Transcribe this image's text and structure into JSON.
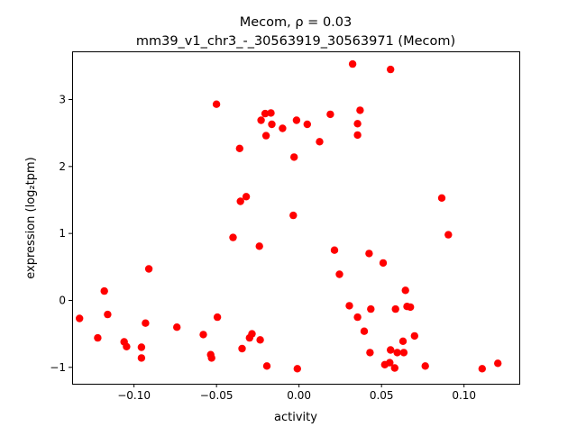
{
  "chart_data": {
    "type": "scatter",
    "title_line1": "Mecom, ρ = 0.03",
    "title_line2": "mm39_v1_chr3_-_30563919_30563971 (Mecom)",
    "xlabel": "activity",
    "ylabel": "expression (log₂tpm)",
    "xlim": [
      -0.1375,
      0.1335
    ],
    "ylim": [
      -1.245,
      3.72
    ],
    "xticks": [
      {
        "value": -0.1,
        "label": "−0.10"
      },
      {
        "value": -0.05,
        "label": "−0.05"
      },
      {
        "value": 0.0,
        "label": "0.00"
      },
      {
        "value": 0.05,
        "label": "0.05"
      },
      {
        "value": 0.1,
        "label": "0.10"
      }
    ],
    "yticks": [
      {
        "value": -1,
        "label": "−1"
      },
      {
        "value": 0,
        "label": "0"
      },
      {
        "value": 1,
        "label": "1"
      },
      {
        "value": 2,
        "label": "2"
      },
      {
        "value": 3,
        "label": "3"
      }
    ],
    "grid": false,
    "point_color": "#ff0000",
    "points": [
      [
        -0.133,
        -0.27
      ],
      [
        -0.122,
        -0.56
      ],
      [
        -0.118,
        0.14
      ],
      [
        -0.116,
        -0.21
      ],
      [
        -0.106,
        -0.62
      ],
      [
        -0.1045,
        -0.69
      ],
      [
        -0.0955,
        -0.7
      ],
      [
        -0.0955,
        -0.86
      ],
      [
        -0.093,
        -0.34
      ],
      [
        -0.091,
        0.47
      ],
      [
        -0.074,
        -0.4
      ],
      [
        -0.058,
        -0.51
      ],
      [
        -0.0535,
        -0.81
      ],
      [
        -0.053,
        -0.86
      ],
      [
        -0.05,
        2.93
      ],
      [
        -0.0495,
        -0.25
      ],
      [
        -0.04,
        0.94
      ],
      [
        -0.036,
        2.27
      ],
      [
        -0.0355,
        1.48
      ],
      [
        -0.0345,
        -0.72
      ],
      [
        -0.032,
        1.55
      ],
      [
        -0.03,
        -0.56
      ],
      [
        -0.0285,
        -0.5
      ],
      [
        -0.024,
        0.81
      ],
      [
        -0.0235,
        -0.59
      ],
      [
        -0.023,
        2.69
      ],
      [
        -0.0205,
        2.79
      ],
      [
        -0.02,
        2.46
      ],
      [
        -0.0195,
        -0.98
      ],
      [
        -0.017,
        2.8
      ],
      [
        -0.0165,
        2.63
      ],
      [
        -0.01,
        2.57
      ],
      [
        -0.0035,
        1.27
      ],
      [
        -0.003,
        2.14
      ],
      [
        -0.0015,
        2.69
      ],
      [
        -0.001,
        -1.02
      ],
      [
        0.005,
        2.63
      ],
      [
        0.0125,
        2.37
      ],
      [
        0.019,
        2.78
      ],
      [
        0.0215,
        0.75
      ],
      [
        0.0245,
        0.39
      ],
      [
        0.0305,
        -0.08
      ],
      [
        0.0325,
        3.53
      ],
      [
        0.0355,
        2.64
      ],
      [
        0.0355,
        2.47
      ],
      [
        0.0355,
        -0.25
      ],
      [
        0.037,
        2.84
      ],
      [
        0.0395,
        -0.46
      ],
      [
        0.0425,
        0.7
      ],
      [
        0.043,
        -0.78
      ],
      [
        0.0435,
        -0.13
      ],
      [
        0.051,
        0.56
      ],
      [
        0.052,
        -0.96
      ],
      [
        0.055,
        -0.93
      ],
      [
        0.0555,
        3.45
      ],
      [
        0.0555,
        -0.74
      ],
      [
        0.058,
        -1.01
      ],
      [
        0.0585,
        -0.13
      ],
      [
        0.0595,
        -0.78
      ],
      [
        0.063,
        -0.61
      ],
      [
        0.0635,
        -0.78
      ],
      [
        0.0645,
        0.15
      ],
      [
        0.0655,
        -0.09
      ],
      [
        0.0675,
        -0.1
      ],
      [
        0.07,
        -0.53
      ],
      [
        0.0765,
        -0.98
      ],
      [
        0.0865,
        1.53
      ],
      [
        0.0905,
        0.98
      ],
      [
        0.111,
        -1.02
      ],
      [
        0.1205,
        -0.94
      ]
    ]
  }
}
